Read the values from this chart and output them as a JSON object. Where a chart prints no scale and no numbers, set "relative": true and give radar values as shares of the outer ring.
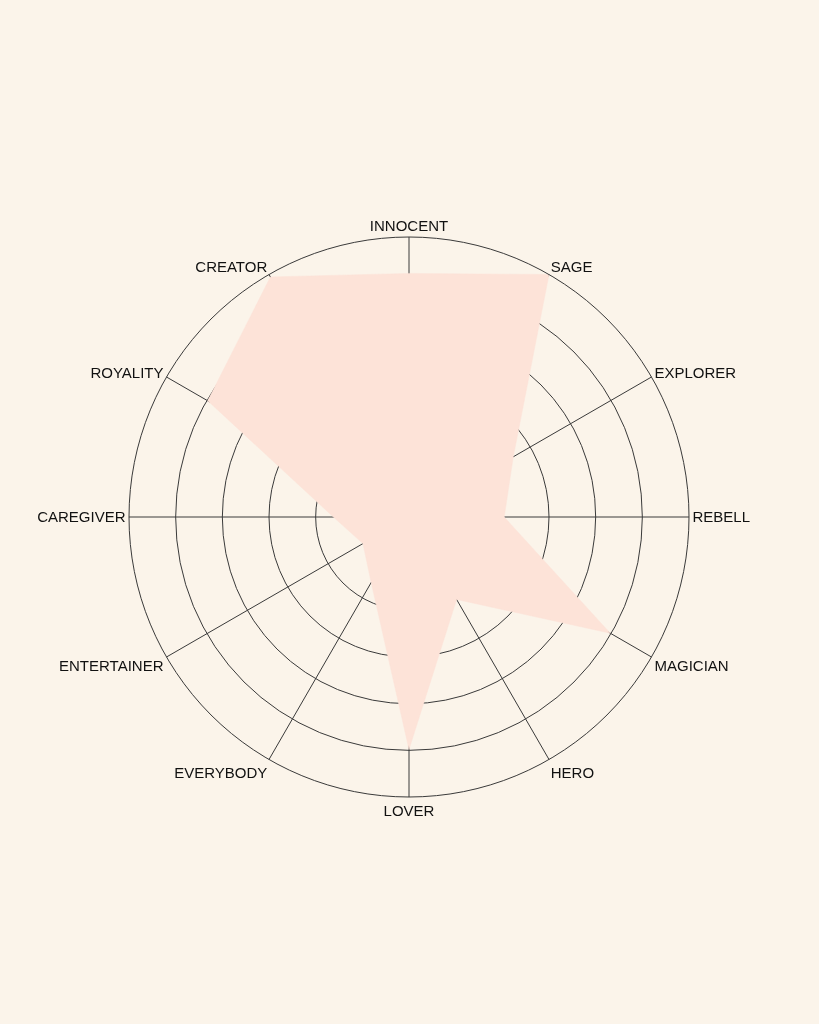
{
  "chart_data": {
    "type": "radar",
    "relative": true,
    "grid": true,
    "marker": "none",
    "categories": [
      "INNOCENT",
      "SAGE",
      "EXPLORER",
      "REBELL",
      "MAGICIAN",
      "HERO",
      "LOVER",
      "EVERYBODY",
      "ENTERTAINER",
      "CAREGIVER",
      "ROYALITY",
      "CREATOR"
    ],
    "series": [
      {
        "color": "#fde3d8",
        "values": [
          0.87,
          1.0,
          0.43,
          0.34,
          0.83,
          0.34,
          0.83,
          0.27,
          0.19,
          0.27,
          0.83,
          0.99
        ]
      }
    ]
  }
}
